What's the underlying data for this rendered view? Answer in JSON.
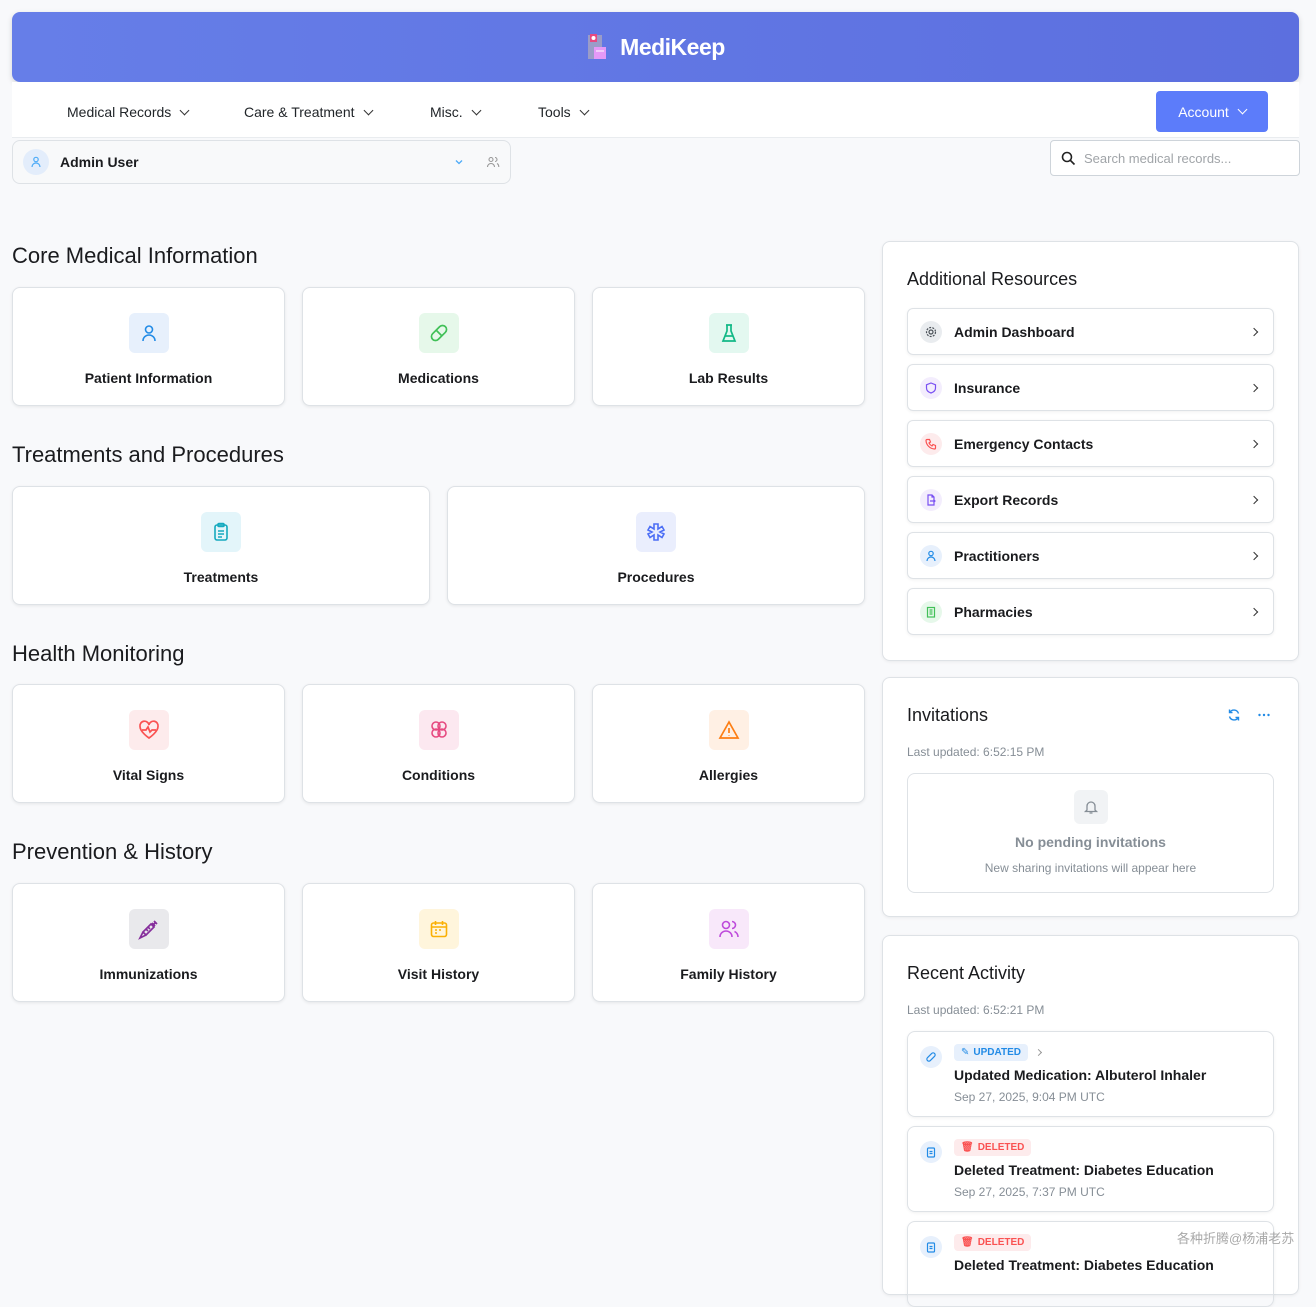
{
  "header": {
    "brand": "MediKeep"
  },
  "nav": {
    "items": [
      {
        "label": "Medical Records"
      },
      {
        "label": "Care & Treatment"
      },
      {
        "label": "Misc."
      },
      {
        "label": "Tools"
      }
    ],
    "account": "Account"
  },
  "user": {
    "name": "Admin User"
  },
  "search": {
    "placeholder": "Search medical records..."
  },
  "sections": [
    {
      "title": "Core Medical Information",
      "cards": [
        {
          "label": "Patient Information",
          "icon": "user-icon"
        },
        {
          "label": "Medications",
          "icon": "pill-icon"
        },
        {
          "label": "Lab Results",
          "icon": "flask-icon"
        }
      ]
    },
    {
      "title": "Treatments and Procedures",
      "cards": [
        {
          "label": "Treatments",
          "icon": "clipboard-icon"
        },
        {
          "label": "Procedures",
          "icon": "medical-cross-icon"
        }
      ]
    },
    {
      "title": "Health Monitoring",
      "cards": [
        {
          "label": "Vital Signs",
          "icon": "heartbeat-icon"
        },
        {
          "label": "Conditions",
          "icon": "brain-icon"
        },
        {
          "label": "Allergies",
          "icon": "warning-icon"
        }
      ]
    },
    {
      "title": "Prevention & History",
      "cards": [
        {
          "label": "Immunizations",
          "icon": "vaccine-icon"
        },
        {
          "label": "Visit History",
          "icon": "calendar-icon"
        },
        {
          "label": "Family History",
          "icon": "users-icon"
        }
      ]
    }
  ],
  "resources": {
    "title": "Additional Resources",
    "items": [
      {
        "label": "Admin Dashboard"
      },
      {
        "label": "Insurance"
      },
      {
        "label": "Emergency Contacts"
      },
      {
        "label": "Export Records"
      },
      {
        "label": "Practitioners"
      },
      {
        "label": "Pharmacies"
      }
    ]
  },
  "invitations": {
    "title": "Invitations",
    "updated": "Last updated: 6:52:15 PM",
    "empty_title": "No pending invitations",
    "empty_sub": "New sharing invitations will appear here"
  },
  "activity": {
    "title": "Recent Activity",
    "updated": "Last updated: 6:52:21 PM",
    "items": [
      {
        "badge": "UPDATED",
        "title": "Updated Medication: Albuterol Inhaler",
        "date": "Sep 27, 2025, 9:04 PM UTC"
      },
      {
        "badge": "DELETED",
        "title": "Deleted Treatment: Diabetes Education",
        "date": "Sep 27, 2025, 7:37 PM UTC"
      },
      {
        "badge": "DELETED",
        "title": "Deleted Treatment: Diabetes Education",
        "date": ""
      }
    ]
  },
  "watermark": "各种折腾@杨浦老苏",
  "colors": {
    "primary": "#5c7cfa",
    "updated": "#228be6",
    "deleted": "#fa5252"
  }
}
